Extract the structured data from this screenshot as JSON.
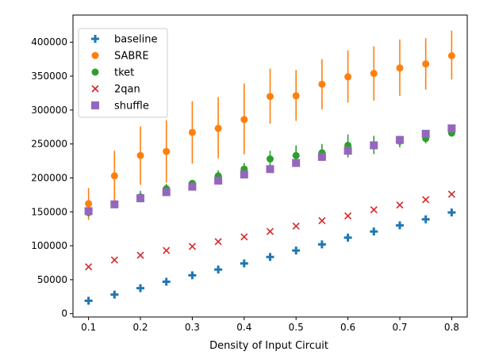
{
  "chart_data": {
    "type": "scatter",
    "title": "",
    "xlabel": "Density of Input Circuit",
    "ylabel": "",
    "xlim": [
      0.07,
      0.83
    ],
    "ylim": [
      -5000,
      440000
    ],
    "xticks": [
      0.1,
      0.2,
      0.3,
      0.4,
      0.5,
      0.6,
      0.7,
      0.8
    ],
    "xtick_labels": [
      "0.1",
      "0.2",
      "0.3",
      "0.4",
      "0.5",
      "0.6",
      "0.7",
      "0.8"
    ],
    "yticks": [
      0,
      50000,
      100000,
      150000,
      200000,
      250000,
      300000,
      350000,
      400000
    ],
    "ytick_labels": [
      "0",
      "50000",
      "100000",
      "150000",
      "200000",
      "250000",
      "300000",
      "350000",
      "400000"
    ],
    "x": [
      0.1,
      0.15,
      0.2,
      0.25,
      0.3,
      0.35,
      0.4,
      0.45,
      0.5,
      0.55,
      0.6,
      0.65,
      0.7,
      0.75,
      0.8
    ],
    "legend_position": "top-left",
    "series": [
      {
        "name": "baseline",
        "marker": "plus",
        "color": "#1f77b4",
        "values": [
          19000,
          28000,
          37500,
          47000,
          56500,
          65000,
          74000,
          83500,
          93000,
          102000,
          112000,
          121000,
          130000,
          139000,
          149000
        ]
      },
      {
        "name": "SABRE",
        "marker": "circle",
        "color": "#ff7f0e",
        "values": [
          162000,
          203000,
          233000,
          239000,
          267000,
          273000,
          286000,
          320000,
          321000,
          338000,
          349000,
          354000,
          362000,
          368000,
          380000
        ],
        "err_low": [
          138000,
          166000,
          190000,
          193000,
          221000,
          229000,
          235000,
          280000,
          284000,
          301000,
          311000,
          314000,
          321000,
          330000,
          345000
        ],
        "err_high": [
          185000,
          240000,
          276000,
          285000,
          313000,
          319000,
          339000,
          361000,
          359000,
          375000,
          388000,
          394000,
          404000,
          406000,
          417000
        ]
      },
      {
        "name": "tket",
        "marker": "circle",
        "color": "#2ca02c",
        "values": [
          149000,
          161000,
          172000,
          184000,
          192000,
          203000,
          213000,
          228000,
          233000,
          237000,
          248000,
          248000,
          254000,
          258000,
          266000
        ],
        "err_low": [
          143000,
          158000,
          164000,
          177000,
          188000,
          196000,
          205000,
          216000,
          222000,
          225000,
          230000,
          235000,
          245000,
          251000,
          261000
        ],
        "err_high": [
          156000,
          164000,
          181000,
          191000,
          196000,
          211000,
          222000,
          240000,
          248000,
          250000,
          264000,
          262000,
          262000,
          266000,
          272000
        ]
      },
      {
        "name": "2qan",
        "marker": "x",
        "color": "#d62728",
        "values": [
          69000,
          79000,
          86000,
          93000,
          99000,
          106000,
          113000,
          121000,
          129000,
          137000,
          144000,
          153000,
          160000,
          168000,
          176000
        ]
      },
      {
        "name": "shuffle",
        "marker": "square",
        "color": "#9467bd",
        "values": [
          151000,
          161000,
          170000,
          179000,
          187000,
          196000,
          205000,
          213000,
          222000,
          231000,
          240000,
          248000,
          256000,
          265000,
          273000
        ]
      }
    ]
  }
}
